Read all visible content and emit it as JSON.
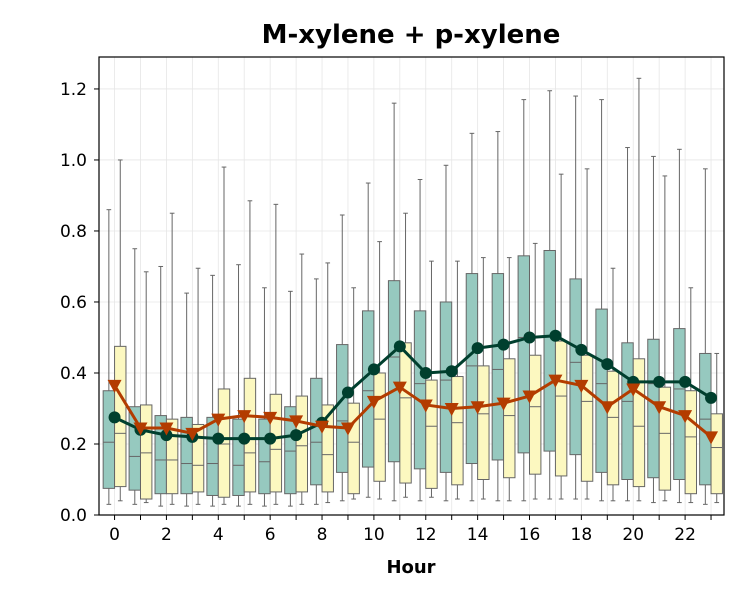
{
  "chart_data": {
    "type": "box",
    "title": "M-xylene + p-xylene",
    "xlabel": "Hour",
    "ylabel": "",
    "xlim": [
      -0.6,
      23.5
    ],
    "ylim": [
      0.0,
      1.29
    ],
    "x_ticks": [
      0,
      2,
      4,
      6,
      8,
      10,
      12,
      14,
      16,
      18,
      20,
      22
    ],
    "x_tick_labels": [
      "0",
      "2",
      "4",
      "6",
      "8",
      "10",
      "12",
      "14",
      "16",
      "18",
      "20",
      "22"
    ],
    "y_ticks": [
      0.0,
      0.2,
      0.4,
      0.6,
      0.8,
      1.0,
      1.2
    ],
    "y_tick_labels": [
      "0.0",
      "0.2",
      "0.4",
      "0.6",
      "0.8",
      "1.0",
      "1.2"
    ],
    "grid": true,
    "legend": "none",
    "colors": {
      "box_series_1": "#96c9bf",
      "box_series_2": "#fcf8c0",
      "box_edge": "#666666",
      "line_series_1": "#003f2e",
      "line_series_2": "#b33c00"
    },
    "box_series": [
      {
        "boxes": [
          {
            "hour": 0,
            "whislo": 0.03,
            "q1": 0.075,
            "med": 0.205,
            "q3": 0.35,
            "whishi": 0.86
          },
          {
            "hour": 1,
            "whislo": 0.03,
            "q1": 0.07,
            "med": 0.165,
            "q3": 0.305,
            "whishi": 0.75
          },
          {
            "hour": 2,
            "whislo": 0.025,
            "q1": 0.06,
            "med": 0.155,
            "q3": 0.28,
            "whishi": 0.7
          },
          {
            "hour": 3,
            "whislo": 0.025,
            "q1": 0.06,
            "med": 0.145,
            "q3": 0.275,
            "whishi": 0.625
          },
          {
            "hour": 4,
            "whislo": 0.025,
            "q1": 0.055,
            "med": 0.145,
            "q3": 0.275,
            "whishi": 0.675
          },
          {
            "hour": 5,
            "whislo": 0.025,
            "q1": 0.055,
            "med": 0.14,
            "q3": 0.27,
            "whishi": 0.705
          },
          {
            "hour": 6,
            "whislo": 0.025,
            "q1": 0.06,
            "med": 0.15,
            "q3": 0.27,
            "whishi": 0.64
          },
          {
            "hour": 7,
            "whislo": 0.025,
            "q1": 0.06,
            "med": 0.18,
            "q3": 0.305,
            "whishi": 0.63
          },
          {
            "hour": 8,
            "whislo": 0.03,
            "q1": 0.085,
            "med": 0.205,
            "q3": 0.385,
            "whishi": 0.665
          },
          {
            "hour": 9,
            "whislo": 0.04,
            "q1": 0.12,
            "med": 0.265,
            "q3": 0.48,
            "whishi": 0.845
          },
          {
            "hour": 10,
            "whislo": 0.05,
            "q1": 0.135,
            "med": 0.35,
            "q3": 0.575,
            "whishi": 0.935
          },
          {
            "hour": 11,
            "whislo": 0.04,
            "q1": 0.15,
            "med": 0.445,
            "q3": 0.66,
            "whishi": 1.16
          },
          {
            "hour": 12,
            "whislo": 0.04,
            "q1": 0.13,
            "med": 0.37,
            "q3": 0.575,
            "whishi": 0.945
          },
          {
            "hour": 13,
            "whislo": 0.04,
            "q1": 0.12,
            "med": 0.38,
            "q3": 0.6,
            "whishi": 0.985
          },
          {
            "hour": 14,
            "whislo": 0.04,
            "q1": 0.145,
            "med": 0.42,
            "q3": 0.68,
            "whishi": 1.075
          },
          {
            "hour": 15,
            "whislo": 0.04,
            "q1": 0.155,
            "med": 0.41,
            "q3": 0.68,
            "whishi": 1.08
          },
          {
            "hour": 16,
            "whislo": 0.04,
            "q1": 0.175,
            "med": 0.5,
            "q3": 0.73,
            "whishi": 1.17
          },
          {
            "hour": 17,
            "whislo": 0.045,
            "q1": 0.18,
            "med": 0.505,
            "q3": 0.745,
            "whishi": 1.195
          },
          {
            "hour": 18,
            "whislo": 0.045,
            "q1": 0.17,
            "med": 0.43,
            "q3": 0.665,
            "whishi": 1.18
          },
          {
            "hour": 19,
            "whislo": 0.04,
            "q1": 0.12,
            "med": 0.37,
            "q3": 0.58,
            "whishi": 1.17
          },
          {
            "hour": 20,
            "whislo": 0.04,
            "q1": 0.1,
            "med": 0.32,
            "q3": 0.485,
            "whishi": 1.035
          },
          {
            "hour": 21,
            "whislo": 0.035,
            "q1": 0.105,
            "med": 0.37,
            "q3": 0.495,
            "whishi": 1.01
          },
          {
            "hour": 22,
            "whislo": 0.035,
            "q1": 0.1,
            "med": 0.355,
            "q3": 0.525,
            "whishi": 1.03
          },
          {
            "hour": 23,
            "whislo": 0.03,
            "q1": 0.085,
            "med": 0.27,
            "q3": 0.455,
            "whishi": 0.975
          }
        ]
      },
      {
        "boxes": [
          {
            "hour": 0,
            "whislo": 0.04,
            "q1": 0.08,
            "med": 0.23,
            "q3": 0.475,
            "whishi": 1.0
          },
          {
            "hour": 1,
            "whislo": 0.035,
            "q1": 0.045,
            "med": 0.175,
            "q3": 0.31,
            "whishi": 0.685
          },
          {
            "hour": 2,
            "whislo": 0.03,
            "q1": 0.06,
            "med": 0.155,
            "q3": 0.27,
            "whishi": 0.85
          },
          {
            "hour": 3,
            "whislo": 0.03,
            "q1": 0.065,
            "med": 0.14,
            "q3": 0.255,
            "whishi": 0.695
          },
          {
            "hour": 4,
            "whislo": 0.03,
            "q1": 0.05,
            "med": 0.2,
            "q3": 0.355,
            "whishi": 0.98
          },
          {
            "hour": 5,
            "whislo": 0.03,
            "q1": 0.065,
            "med": 0.175,
            "q3": 0.385,
            "whishi": 0.885
          },
          {
            "hour": 6,
            "whislo": 0.03,
            "q1": 0.065,
            "med": 0.185,
            "q3": 0.34,
            "whishi": 0.875
          },
          {
            "hour": 7,
            "whislo": 0.03,
            "q1": 0.065,
            "med": 0.195,
            "q3": 0.335,
            "whishi": 0.735
          },
          {
            "hour": 8,
            "whislo": 0.035,
            "q1": 0.065,
            "med": 0.17,
            "q3": 0.31,
            "whishi": 0.71
          },
          {
            "hour": 9,
            "whislo": 0.045,
            "q1": 0.06,
            "med": 0.205,
            "q3": 0.315,
            "whishi": 0.64
          },
          {
            "hour": 10,
            "whislo": 0.045,
            "q1": 0.095,
            "med": 0.27,
            "q3": 0.4,
            "whishi": 0.77
          },
          {
            "hour": 11,
            "whislo": 0.05,
            "q1": 0.09,
            "med": 0.33,
            "q3": 0.485,
            "whishi": 0.85
          },
          {
            "hour": 12,
            "whislo": 0.05,
            "q1": 0.075,
            "med": 0.25,
            "q3": 0.38,
            "whishi": 0.715
          },
          {
            "hour": 13,
            "whislo": 0.045,
            "q1": 0.085,
            "med": 0.26,
            "q3": 0.39,
            "whishi": 0.715
          },
          {
            "hour": 14,
            "whislo": 0.045,
            "q1": 0.1,
            "med": 0.285,
            "q3": 0.42,
            "whishi": 0.725
          },
          {
            "hour": 15,
            "whislo": 0.04,
            "q1": 0.105,
            "med": 0.28,
            "q3": 0.44,
            "whishi": 0.725
          },
          {
            "hour": 16,
            "whislo": 0.045,
            "q1": 0.115,
            "med": 0.305,
            "q3": 0.45,
            "whishi": 0.765
          },
          {
            "hour": 17,
            "whislo": 0.045,
            "q1": 0.11,
            "med": 0.335,
            "q3": 0.49,
            "whishi": 0.96
          },
          {
            "hour": 18,
            "whislo": 0.045,
            "q1": 0.095,
            "med": 0.32,
            "q3": 0.45,
            "whishi": 0.975
          },
          {
            "hour": 19,
            "whislo": 0.04,
            "q1": 0.085,
            "med": 0.275,
            "q3": 0.405,
            "whishi": 0.695
          },
          {
            "hour": 20,
            "whislo": 0.04,
            "q1": 0.08,
            "med": 0.25,
            "q3": 0.44,
            "whishi": 1.23
          },
          {
            "hour": 21,
            "whislo": 0.04,
            "q1": 0.07,
            "med": 0.23,
            "q3": 0.36,
            "whishi": 0.955
          },
          {
            "hour": 22,
            "whislo": 0.035,
            "q1": 0.06,
            "med": 0.22,
            "q3": 0.35,
            "whishi": 0.64
          },
          {
            "hour": 23,
            "whislo": 0.035,
            "q1": 0.06,
            "med": 0.19,
            "q3": 0.285,
            "whishi": 0.455
          }
        ]
      }
    ],
    "line_series": [
      {
        "marker": "circle",
        "x": [
          0,
          1,
          2,
          3,
          4,
          5,
          6,
          7,
          8,
          9,
          10,
          11,
          12,
          13,
          14,
          15,
          16,
          17,
          18,
          19,
          20,
          21,
          22,
          23
        ],
        "y": [
          0.275,
          0.24,
          0.225,
          0.22,
          0.215,
          0.215,
          0.215,
          0.225,
          0.26,
          0.345,
          0.41,
          0.475,
          0.4,
          0.405,
          0.47,
          0.48,
          0.5,
          0.505,
          0.465,
          0.425,
          0.375,
          0.375,
          0.375,
          0.33
        ]
      },
      {
        "marker": "triangle-down",
        "x": [
          0,
          1,
          2,
          3,
          4,
          5,
          6,
          7,
          8,
          9,
          10,
          11,
          12,
          13,
          14,
          15,
          16,
          17,
          18,
          19,
          20,
          21,
          22,
          23
        ],
        "y": [
          0.365,
          0.245,
          0.245,
          0.23,
          0.27,
          0.28,
          0.275,
          0.265,
          0.25,
          0.245,
          0.32,
          0.36,
          0.31,
          0.3,
          0.305,
          0.315,
          0.335,
          0.38,
          0.365,
          0.305,
          0.355,
          0.305,
          0.28,
          0.22
        ]
      }
    ]
  }
}
